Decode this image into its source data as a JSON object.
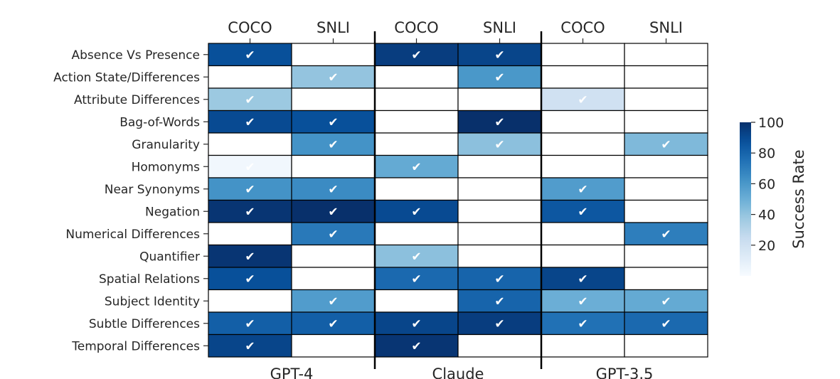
{
  "chart_data": {
    "type": "heatmap",
    "title": "",
    "columns": [
      {
        "model": "GPT-4",
        "dataset": "COCO"
      },
      {
        "model": "GPT-4",
        "dataset": "SNLI"
      },
      {
        "model": "Claude",
        "dataset": "COCO"
      },
      {
        "model": "Claude",
        "dataset": "SNLI"
      },
      {
        "model": "GPT-3.5",
        "dataset": "COCO"
      },
      {
        "model": "GPT-3.5",
        "dataset": "SNLI"
      }
    ],
    "column_labels": [
      "COCO",
      "SNLI",
      "COCO",
      "SNLI",
      "COCO",
      "SNLI"
    ],
    "model_labels": [
      "GPT-4",
      "Claude",
      "GPT-3.5"
    ],
    "rows": [
      "Absence Vs Presence",
      "Action State/Differences",
      "Attribute Differences",
      "Bag-of-Words",
      "Granularity",
      "Homonyms",
      "Near Synonyms",
      "Negation",
      "Numerical Differences",
      "Quantifier",
      "Spatial Relations",
      "Subject Identity",
      "Subtle Differences",
      "Temporal Differences"
    ],
    "values": [
      [
        88,
        null,
        95,
        92,
        null,
        null
      ],
      [
        null,
        40,
        null,
        60,
        null,
        null
      ],
      [
        38,
        null,
        null,
        null,
        20,
        null
      ],
      [
        90,
        88,
        null,
        100,
        null,
        null
      ],
      [
        null,
        62,
        null,
        42,
        null,
        45
      ],
      [
        3,
        null,
        52,
        null,
        null,
        null
      ],
      [
        62,
        65,
        null,
        null,
        58,
        null
      ],
      [
        98,
        100,
        90,
        null,
        85,
        null
      ],
      [
        null,
        72,
        null,
        null,
        null,
        70
      ],
      [
        98,
        null,
        42,
        null,
        null,
        null
      ],
      [
        88,
        null,
        78,
        80,
        92,
        null
      ],
      [
        null,
        58,
        null,
        80,
        50,
        52
      ],
      [
        82,
        82,
        92,
        95,
        75,
        78
      ],
      [
        92,
        null,
        98,
        null,
        null,
        null
      ]
    ],
    "check_mark": "✔",
    "colorbar": {
      "label": "Success Rate",
      "ticks": [
        20,
        40,
        60,
        80,
        100
      ],
      "range": [
        0,
        100
      ],
      "colormap": "Blues"
    },
    "grid": true
  }
}
